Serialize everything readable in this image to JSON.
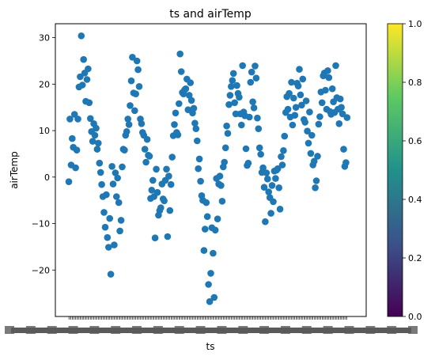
{
  "chart_data": {
    "type": "scatter",
    "title": "ts and airTemp",
    "xlabel": "ts",
    "ylabel": "airTemp",
    "ylim": [
      -30,
      33
    ],
    "y_ticks": [
      -20,
      -10,
      0,
      10,
      20,
      30
    ],
    "x_tick_labels_note": "dense overlapping date tick labels (unreadable)",
    "grid": false,
    "marker_color": "#1f77b4",
    "colorbar": {
      "colormap": "viridis",
      "min": 0.0,
      "max": 1.0,
      "ticks": [
        "0.0",
        "0.2",
        "0.4",
        "0.6",
        "0.8",
        "1.0"
      ],
      "colors": [
        "#440154",
        "#3b528b",
        "#21918c",
        "#5ec962",
        "#fde725"
      ]
    },
    "series": [
      {
        "points": [
          [
            0.0,
            -1.0
          ],
          [
            0.004,
            12.5
          ],
          [
            0.008,
            2.6
          ],
          [
            0.012,
            8.3
          ],
          [
            0.016,
            6.4
          ],
          [
            0.02,
            13.5
          ],
          [
            0.024,
            2.0
          ],
          [
            0.028,
            5.8
          ],
          [
            0.032,
            12.5
          ],
          [
            0.036,
            19.4
          ],
          [
            0.04,
            21.6
          ],
          [
            0.044,
            30.4
          ],
          [
            0.048,
            19.8
          ],
          [
            0.052,
            25.3
          ],
          [
            0.056,
            22.4
          ],
          [
            0.06,
            16.3
          ],
          [
            0.064,
            21.0
          ],
          [
            0.068,
            23.3
          ],
          [
            0.072,
            16.0
          ],
          [
            0.076,
            12.6
          ],
          [
            0.08,
            9.8
          ],
          [
            0.084,
            7.7
          ],
          [
            0.088,
            11.5
          ],
          [
            0.092,
            9.0
          ],
          [
            0.096,
            10.5
          ],
          [
            0.1,
            6.0
          ],
          [
            0.104,
            7.3
          ],
          [
            0.108,
            3.0
          ],
          [
            0.112,
            1.0
          ],
          [
            0.116,
            -1.6
          ],
          [
            0.12,
            -4.2
          ],
          [
            0.124,
            -7.6
          ],
          [
            0.128,
            -10.8
          ],
          [
            0.132,
            -3.8
          ],
          [
            0.136,
            -13.0
          ],
          [
            0.14,
            -15.1
          ],
          [
            0.144,
            -8.9
          ],
          [
            0.148,
            -20.9
          ],
          [
            0.152,
            2.3
          ],
          [
            0.156,
            -1.5
          ],
          [
            0.16,
            -14.6
          ],
          [
            0.164,
            0.9
          ],
          [
            0.168,
            -4.2
          ],
          [
            0.172,
            -0.2
          ],
          [
            0.176,
            -5.5
          ],
          [
            0.18,
            -11.6
          ],
          [
            0.184,
            -9.3
          ],
          [
            0.188,
            2.2
          ],
          [
            0.192,
            6.0
          ],
          [
            0.196,
            5.8
          ],
          [
            0.2,
            9.0
          ],
          [
            0.204,
            9.8
          ],
          [
            0.208,
            12.5
          ],
          [
            0.212,
            11.3
          ],
          [
            0.216,
            15.4
          ],
          [
            0.22,
            20.7
          ],
          [
            0.224,
            25.8
          ],
          [
            0.228,
            18.1
          ],
          [
            0.232,
            14.3
          ],
          [
            0.236,
            17.9
          ],
          [
            0.24,
            25.0
          ],
          [
            0.244,
            23.1
          ],
          [
            0.248,
            19.5
          ],
          [
            0.252,
            12.5
          ],
          [
            0.256,
            11.5
          ],
          [
            0.26,
            9.6
          ],
          [
            0.264,
            9.0
          ],
          [
            0.268,
            6.0
          ],
          [
            0.272,
            3.2
          ],
          [
            0.276,
            8.1
          ],
          [
            0.28,
            4.7
          ],
          [
            0.284,
            4.5
          ],
          [
            0.288,
            -4.6
          ],
          [
            0.292,
            -2.8
          ],
          [
            0.296,
            -0.7
          ],
          [
            0.3,
            -4.2
          ],
          [
            0.304,
            -13.1
          ],
          [
            0.308,
            1.7
          ],
          [
            0.312,
            -3.3
          ],
          [
            0.316,
            -8.2
          ],
          [
            0.32,
            -7.2
          ],
          [
            0.324,
            -6.6
          ],
          [
            0.328,
            -1.5
          ],
          [
            0.332,
            -4.7
          ],
          [
            0.336,
            -5.1
          ],
          [
            0.34,
            -0.7
          ],
          [
            0.344,
            1.7
          ],
          [
            0.348,
            -12.8
          ],
          [
            0.352,
            0.2
          ],
          [
            0.356,
            -7.2
          ],
          [
            0.36,
            -1.6
          ],
          [
            0.364,
            4.3
          ],
          [
            0.368,
            8.9
          ],
          [
            0.372,
            11.3
          ],
          [
            0.376,
            13.8
          ],
          [
            0.38,
            9.6
          ],
          [
            0.384,
            9.1
          ],
          [
            0.388,
            15.8
          ],
          [
            0.392,
            26.5
          ],
          [
            0.396,
            22.7
          ],
          [
            0.4,
            18.2
          ],
          [
            0.404,
            17.9
          ],
          [
            0.408,
            18.8
          ],
          [
            0.412,
            19.0
          ],
          [
            0.416,
            21.1
          ],
          [
            0.42,
            14.5
          ],
          [
            0.424,
            17.6
          ],
          [
            0.428,
            20.3
          ],
          [
            0.432,
            16.5
          ],
          [
            0.436,
            13.8
          ],
          [
            0.44,
            14.8
          ],
          [
            0.444,
            11.6
          ],
          [
            0.448,
            10.4
          ],
          [
            0.452,
            7.8
          ],
          [
            0.456,
            1.8
          ],
          [
            0.46,
            3.9
          ],
          [
            0.464,
            -0.9
          ],
          [
            0.468,
            -4.0
          ],
          [
            0.472,
            -5.0
          ],
          [
            0.476,
            -15.8
          ],
          [
            0.48,
            -11.2
          ],
          [
            0.484,
            -5.5
          ],
          [
            0.488,
            -8.5
          ],
          [
            0.492,
            -23.1
          ],
          [
            0.496,
            -26.8
          ],
          [
            0.5,
            -20.7
          ],
          [
            0.504,
            -10.9
          ],
          [
            0.508,
            -16.4
          ],
          [
            0.512,
            -25.9
          ],
          [
            0.516,
            -11.4
          ],
          [
            0.52,
            -0.3
          ],
          [
            0.524,
            -9.0
          ],
          [
            0.528,
            -1.5
          ],
          [
            0.532,
            0.2
          ],
          [
            0.536,
            -1.8
          ],
          [
            0.54,
            -5.2
          ],
          [
            0.544,
            2.2
          ],
          [
            0.548,
            3.2
          ],
          [
            0.552,
            6.3
          ],
          [
            0.556,
            11.0
          ],
          [
            0.56,
            9.4
          ],
          [
            0.564,
            15.6
          ],
          [
            0.568,
            17.6
          ],
          [
            0.572,
            19.5
          ],
          [
            0.576,
            20.8
          ],
          [
            0.58,
            22.3
          ],
          [
            0.584,
            16.0
          ],
          [
            0.588,
            13.6
          ],
          [
            0.592,
            19.7
          ],
          [
            0.596,
            18.0
          ],
          [
            0.6,
            17.2
          ],
          [
            0.604,
            13.6
          ],
          [
            0.608,
            11.2
          ],
          [
            0.612,
            24.0
          ],
          [
            0.616,
            14.0
          ],
          [
            0.62,
            13.2
          ],
          [
            0.624,
            6.1
          ],
          [
            0.628,
            2.5
          ],
          [
            0.632,
            3.0
          ],
          [
            0.636,
            12.9
          ],
          [
            0.64,
            20.4
          ],
          [
            0.644,
            22.6
          ],
          [
            0.648,
            16.2
          ],
          [
            0.652,
            14.9
          ],
          [
            0.656,
            23.9
          ],
          [
            0.66,
            21.3
          ],
          [
            0.664,
            12.7
          ],
          [
            0.668,
            10.4
          ],
          [
            0.672,
            6.3
          ],
          [
            0.676,
            4.9
          ],
          [
            0.68,
            1.0
          ],
          [
            0.684,
            2.0
          ],
          [
            0.688,
            -2.2
          ],
          [
            0.692,
            -9.6
          ],
          [
            0.696,
            0.9
          ],
          [
            0.7,
            -0.4
          ],
          [
            0.704,
            -3.2
          ],
          [
            0.708,
            -4.4
          ],
          [
            0.712,
            -7.8
          ],
          [
            0.716,
            -1.8
          ],
          [
            0.72,
            -5.3
          ],
          [
            0.724,
            1.3
          ],
          [
            0.728,
            -0.3
          ],
          [
            0.732,
            1.5
          ],
          [
            0.736,
            1.8
          ],
          [
            0.74,
            -2.3
          ],
          [
            0.744,
            -6.9
          ],
          [
            0.748,
            4.4
          ],
          [
            0.752,
            2.6
          ],
          [
            0.756,
            5.7
          ],
          [
            0.76,
            8.8
          ],
          [
            0.764,
            13.9
          ],
          [
            0.768,
            17.3
          ],
          [
            0.772,
            14.6
          ],
          [
            0.776,
            18.0
          ],
          [
            0.78,
            12.9
          ],
          [
            0.784,
            20.4
          ],
          [
            0.788,
            11.2
          ],
          [
            0.792,
            17.0
          ],
          [
            0.796,
            13.3
          ],
          [
            0.8,
            15.0
          ],
          [
            0.804,
            20.2
          ],
          [
            0.808,
            19.6
          ],
          [
            0.812,
            23.2
          ],
          [
            0.816,
            17.7
          ],
          [
            0.82,
            15.5
          ],
          [
            0.824,
            21.1
          ],
          [
            0.828,
            12.4
          ],
          [
            0.832,
            11.8
          ],
          [
            0.836,
            16.4
          ],
          [
            0.84,
            9.9
          ],
          [
            0.844,
            7.3
          ],
          [
            0.848,
            14.0
          ],
          [
            0.852,
            5.1
          ],
          [
            0.856,
            9.0
          ],
          [
            0.86,
            2.6
          ],
          [
            0.864,
            3.4
          ],
          [
            0.868,
            -2.3
          ],
          [
            0.872,
            -0.8
          ],
          [
            0.876,
            4.5
          ],
          [
            0.88,
            11.4
          ],
          [
            0.884,
            13.0
          ],
          [
            0.888,
            18.3
          ],
          [
            0.892,
            16.0
          ],
          [
            0.896,
            21.8
          ],
          [
            0.9,
            22.4
          ],
          [
            0.904,
            18.7
          ],
          [
            0.908,
            14.6
          ],
          [
            0.912,
            22.9
          ],
          [
            0.916,
            21.4
          ],
          [
            0.92,
            14.1
          ],
          [
            0.924,
            13.5
          ],
          [
            0.928,
            19.0
          ],
          [
            0.932,
            16.2
          ],
          [
            0.936,
            13.9
          ],
          [
            0.94,
            24.0
          ],
          [
            0.944,
            17.1
          ],
          [
            0.948,
            14.6
          ],
          [
            0.952,
            11.5
          ],
          [
            0.956,
            16.8
          ],
          [
            0.96,
            15.0
          ],
          [
            0.964,
            13.6
          ],
          [
            0.968,
            6.0
          ],
          [
            0.972,
            2.3
          ],
          [
            0.976,
            3.1
          ],
          [
            0.98,
            12.8
          ]
        ]
      }
    ]
  }
}
